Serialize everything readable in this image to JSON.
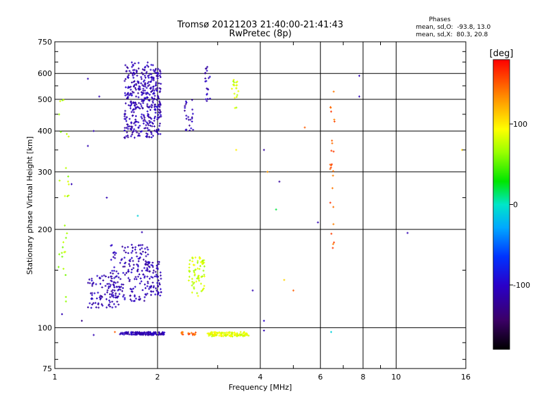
{
  "chart_data": {
    "type": "scatter",
    "title": "Tromsø 20121203 21:40:00-21:41:43",
    "subtitle": "RwPretec (8p)",
    "stats": {
      "heading": "Phases",
      "line1": "mean, sd,O:  -93.8, 13.0",
      "line2": "mean, sd,X:  80.3, 20.8"
    },
    "xlabel": "Frequency [MHz]",
    "ylabel": "Stationary phase Virtual Height [km]",
    "xscale": "log",
    "yscale": "log",
    "xlim": [
      1,
      16
    ],
    "ylim": [
      75,
      750
    ],
    "xticks": [
      1,
      2,
      4,
      6,
      8,
      10,
      16
    ],
    "xtick_labels": [
      "1",
      "2",
      "4",
      "6",
      "8",
      "10",
      "16"
    ],
    "yticks": [
      75,
      100,
      200,
      300,
      400,
      500,
      600,
      750
    ],
    "ytick_labels": [
      "75",
      "100",
      "200",
      "300",
      "400",
      "500",
      "600",
      "750"
    ],
    "grid": true,
    "colorbar": {
      "label": "[deg]",
      "range": [
        -180,
        180
      ],
      "ticks": [
        100,
        0,
        -100
      ],
      "tick_labels": [
        "100",
        "0",
        "-100"
      ],
      "colormap": "rainbow (black → purple → blue → cyan → green → yellow → orange → red)"
    },
    "point_color_meaning": "phase [deg]",
    "series": [
      {
        "name": "",
        "clusters": [
          {
            "x_range": [
              1.6,
              1.95
            ],
            "y_range": [
              380,
              650
            ],
            "phase": -110,
            "count": 320
          },
          {
            "x_range": [
              1.95,
              2.05
            ],
            "y_range": [
              390,
              630
            ],
            "phase": -110,
            "count": 90
          },
          {
            "x_range": [
              2.4,
              2.55
            ],
            "y_range": [
              400,
              500
            ],
            "phase": -110,
            "count": 25
          },
          {
            "x_range": [
              2.75,
              2.85
            ],
            "y_range": [
              480,
              630
            ],
            "phase": -110,
            "count": 20
          },
          {
            "x_range": [
              3.3,
              3.45
            ],
            "y_range": [
              470,
              580
            ],
            "phase": 80,
            "count": 20
          },
          {
            "x_range": [
              1.25,
              1.55
            ],
            "y_range": [
              115,
              145
            ],
            "phase": -110,
            "count": 90
          },
          {
            "x_range": [
              1.45,
              1.9
            ],
            "y_range": [
              120,
              180
            ],
            "phase": -110,
            "count": 170
          },
          {
            "x_range": [
              1.85,
              2.05
            ],
            "y_range": [
              125,
              160
            ],
            "phase": -110,
            "count": 70
          },
          {
            "x_range": [
              2.45,
              2.75
            ],
            "y_range": [
              125,
              165
            ],
            "phase": 80,
            "count": 70
          },
          {
            "x_range": [
              1.55,
              2.1
            ],
            "y_range": [
              95,
              97
            ],
            "phase": -110,
            "count": 130
          },
          {
            "x_range": [
              2.35,
              2.6
            ],
            "y_range": [
              95,
              97
            ],
            "phase": 150,
            "count": 20
          },
          {
            "x_range": [
              2.8,
              3.7
            ],
            "y_range": [
              94,
              97
            ],
            "phase": 85,
            "count": 120
          },
          {
            "x_range": [
              1.02,
              1.1
            ],
            "y_range": [
              120,
              500
            ],
            "phase": 70,
            "count": 30
          },
          {
            "x_range": [
              6.4,
              6.6
            ],
            "y_range": [
              170,
              530
            ],
            "phase": 150,
            "count": 25
          }
        ],
        "points": [
          {
            "x": 1.25,
            "y": 578,
            "phase": -110
          },
          {
            "x": 1.35,
            "y": 510,
            "phase": -110
          },
          {
            "x": 1.25,
            "y": 360,
            "phase": -110
          },
          {
            "x": 1.3,
            "y": 400,
            "phase": -110
          },
          {
            "x": 1.42,
            "y": 250,
            "phase": -110
          },
          {
            "x": 1.75,
            "y": 220,
            "phase": -10
          },
          {
            "x": 1.8,
            "y": 196,
            "phase": -110
          },
          {
            "x": 1.12,
            "y": 275,
            "phase": -110
          },
          {
            "x": 1.05,
            "y": 110,
            "phase": -110
          },
          {
            "x": 1.2,
            "y": 105,
            "phase": -130
          },
          {
            "x": 1.3,
            "y": 95,
            "phase": -110
          },
          {
            "x": 1.5,
            "y": 97,
            "phase": 150
          },
          {
            "x": 3.4,
            "y": 350,
            "phase": 100
          },
          {
            "x": 4.1,
            "y": 350,
            "phase": -120
          },
          {
            "x": 4.2,
            "y": 300,
            "phase": 130
          },
          {
            "x": 4.55,
            "y": 280,
            "phase": -120
          },
          {
            "x": 4.45,
            "y": 230,
            "phase": 20
          },
          {
            "x": 4.1,
            "y": 105,
            "phase": -100
          },
          {
            "x": 4.1,
            "y": 98,
            "phase": -110
          },
          {
            "x": 3.8,
            "y": 130,
            "phase": -110
          },
          {
            "x": 4.7,
            "y": 140,
            "phase": 110
          },
          {
            "x": 5.0,
            "y": 130,
            "phase": 150
          },
          {
            "x": 5.4,
            "y": 410,
            "phase": 150
          },
          {
            "x": 5.9,
            "y": 210,
            "phase": -110
          },
          {
            "x": 6.45,
            "y": 97,
            "phase": -10
          },
          {
            "x": 7.8,
            "y": 590,
            "phase": -110
          },
          {
            "x": 7.8,
            "y": 510,
            "phase": -110
          },
          {
            "x": 10.8,
            "y": 195,
            "phase": -110
          },
          {
            "x": 15.6,
            "y": 350,
            "phase": 110
          }
        ]
      }
    ]
  }
}
